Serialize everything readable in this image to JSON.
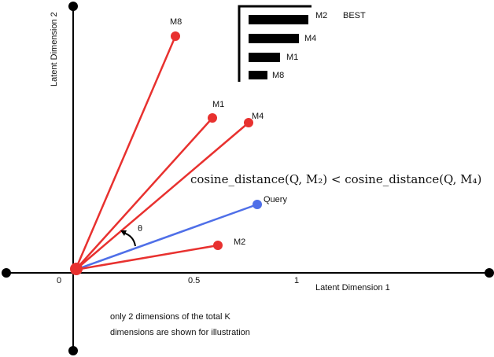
{
  "axes": {
    "x_label": "Latent Dimension 1",
    "y_label": "Latent Dimension 2",
    "x_ticks": [
      "0",
      "0.5",
      "1"
    ]
  },
  "vectors": [
    {
      "label": "M8"
    },
    {
      "label": "M1"
    },
    {
      "label": "M4"
    },
    {
      "label": "Query"
    },
    {
      "label": "M2"
    }
  ],
  "ranking": {
    "items": [
      "M2",
      "M4",
      "M1",
      "M8"
    ],
    "best_label": "BEST"
  },
  "formula": "cosine_distance(Q, M₂) < cosine_distance(Q, M₄)",
  "angle_label": "θ",
  "note": [
    "only 2 dimensions of the total K",
    "dimensions are shown for illustration"
  ]
}
